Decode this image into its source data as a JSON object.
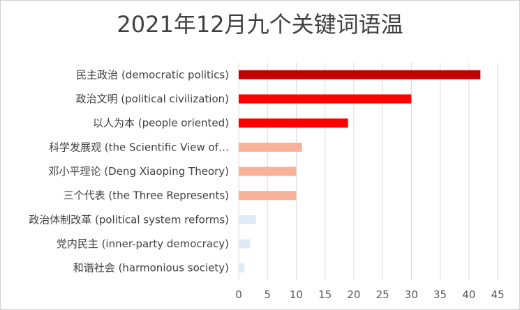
{
  "chart_data": {
    "type": "bar",
    "orientation": "horizontal",
    "title": "2021年12月九个关键词语温",
    "categories": [
      "民主政治 (democratic politics)",
      "政治文明 (political civilization)",
      "以人为本 (people oriented)",
      "科学发展观 (the Scientific View of…",
      "邓小平理论 (Deng Xiaoping Theory)",
      "三个代表 (the Three Represents)",
      "政治体制改革 (political system reforms)",
      "党内民主 (inner-party democracy)",
      "和谐社会 (harmonious society)"
    ],
    "values": [
      42,
      30,
      19,
      11,
      10,
      10,
      3,
      2,
      1
    ],
    "colors": [
      "#c00000",
      "#ff0000",
      "#ff0000",
      "#f8b29a",
      "#f8b29a",
      "#f8b29a",
      "#deebf7",
      "#deebf7",
      "#deebf7"
    ],
    "xlim": [
      0,
      45
    ],
    "xticks": [
      0,
      5,
      10,
      15,
      20,
      25,
      30,
      35,
      40,
      45
    ],
    "grid": true,
    "legend": "none"
  }
}
